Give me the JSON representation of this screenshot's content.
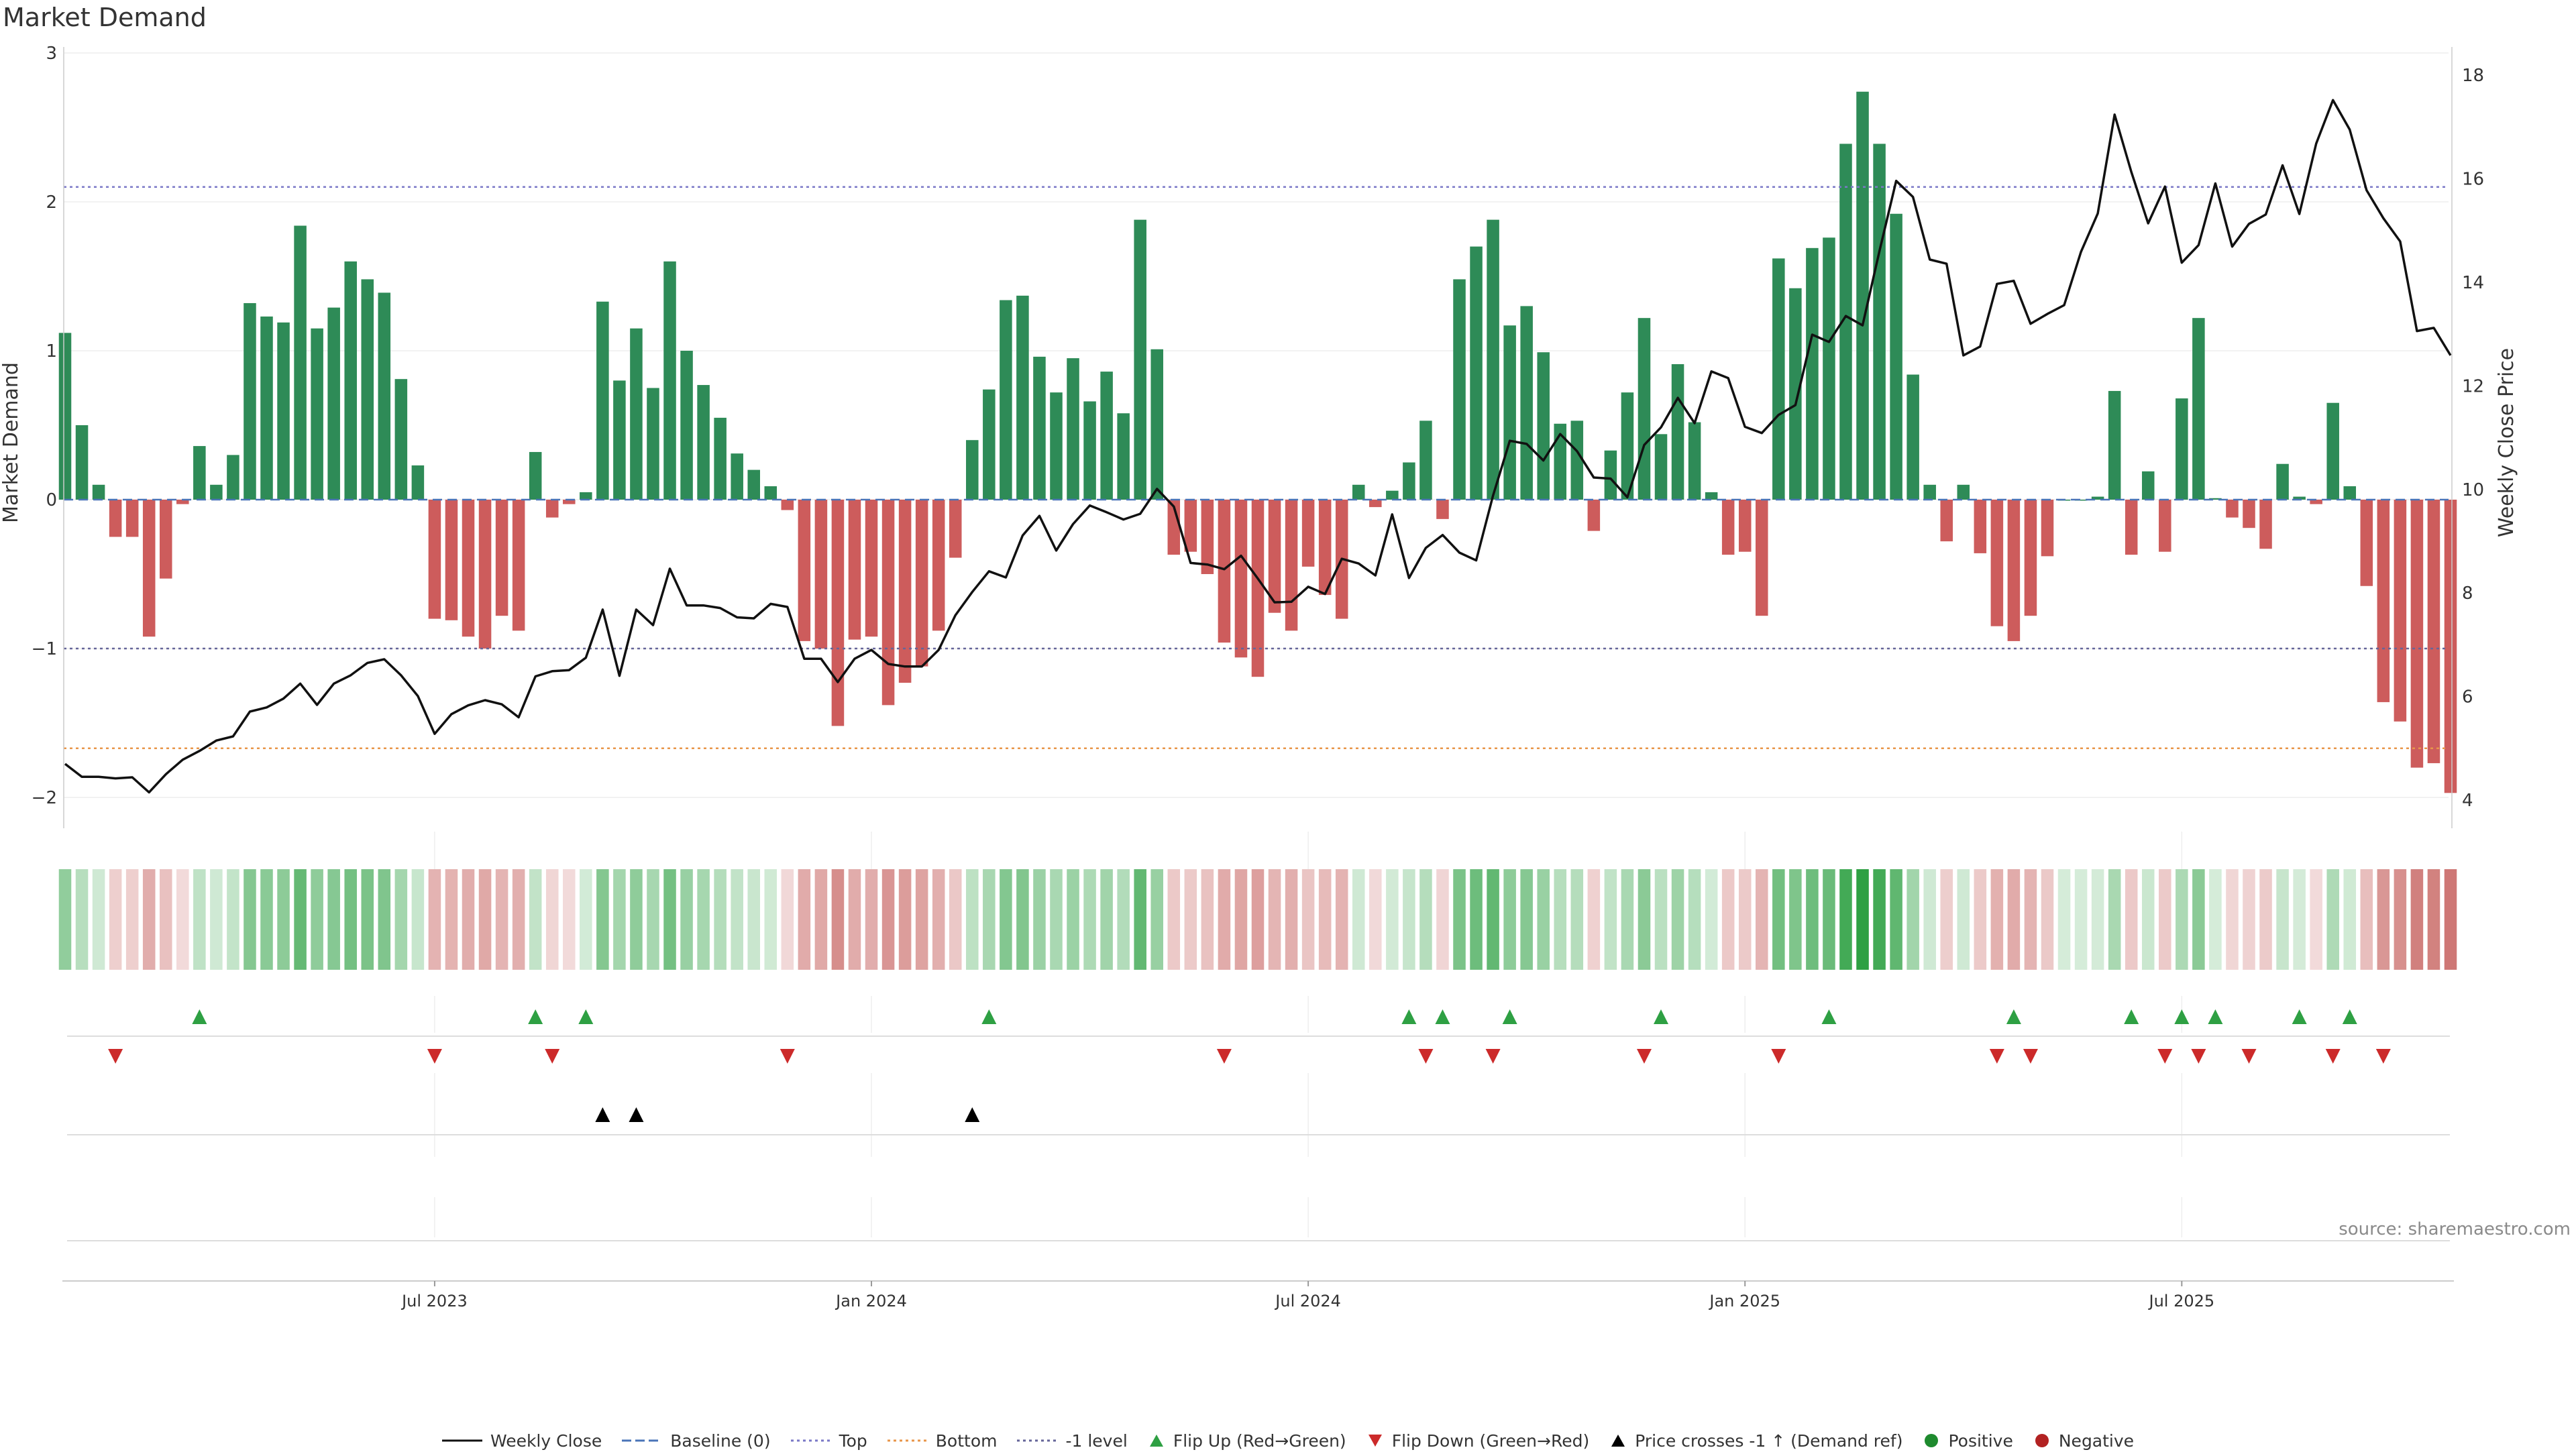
{
  "title": "Market Demand",
  "source": "source: sharemaestro.com",
  "colors": {
    "positive": "#2e8b57",
    "negative": "#cd5c5c",
    "price": "#111111",
    "top": "#7b79c7",
    "bottom": "#e8964a",
    "minus_one": "#666699",
    "baseline": "#4a74b8",
    "flip_up": "#2ea043",
    "flip_down": "#cc2a2a",
    "cross": "#000000",
    "dot_positive": "#1e8a2e",
    "dot_negative": "#b22222"
  },
  "legend": [
    {
      "key": "weekly-close",
      "label": "Weekly Close",
      "symbol": "solid-line",
      "color": "#111111"
    },
    {
      "key": "baseline",
      "label": "Baseline (0)",
      "symbol": "dashed-line",
      "color": "#4a74b8"
    },
    {
      "key": "top",
      "label": "Top",
      "symbol": "dotted-line",
      "color": "#7b79c7"
    },
    {
      "key": "bottom",
      "label": "Bottom",
      "symbol": "dotted-line",
      "color": "#e8964a"
    },
    {
      "key": "minus-one",
      "label": "-1 level",
      "symbol": "dotted-line",
      "color": "#666699"
    },
    {
      "key": "flip-up",
      "label": "Flip Up (Red→Green)",
      "symbol": "triangle-up",
      "color": "#2ea043"
    },
    {
      "key": "flip-down",
      "label": "Flip Down (Green→Red)",
      "symbol": "triangle-down",
      "color": "#cc2a2a"
    },
    {
      "key": "price-cross",
      "label": "Price crosses -1 ↑ (Demand ref)",
      "symbol": "triangle-up",
      "color": "#000000"
    },
    {
      "key": "positive",
      "label": "Positive",
      "symbol": "dot",
      "color": "#1e8a2e"
    },
    {
      "key": "negative",
      "label": "Negative",
      "symbol": "dot",
      "color": "#b22222"
    }
  ],
  "chart_data": {
    "type": "bar",
    "title": "Market Demand",
    "ylabel": "Market Demand",
    "y2label": "Weekly Close Price",
    "ylim": [
      -2.2,
      3.0
    ],
    "y_ticks": [
      3,
      2,
      1,
      0,
      -1,
      -2
    ],
    "y_tick_labels": [
      "3",
      "2",
      "1",
      "0",
      "−1",
      "−2"
    ],
    "y2lim": [
      3.8,
      18.5
    ],
    "y2_ticks": [
      18,
      16,
      14,
      12,
      10,
      8,
      6,
      4
    ],
    "y2_tick_labels": [
      "18",
      "16",
      "14",
      "12",
      "10",
      "8",
      "6",
      "4"
    ],
    "x_date_ticks": [
      22,
      48,
      74,
      100,
      126
    ],
    "x_date_labels": [
      "Jul 2023",
      "Jan 2024",
      "Jul 2024",
      "Jan 2025",
      "Jul 2025"
    ],
    "levels": {
      "top": 2.1,
      "bottom": -1.67,
      "minus_one": -1.0,
      "baseline": 0
    },
    "demand": [
      1.12,
      0.5,
      0.1,
      -0.25,
      -0.25,
      -0.92,
      -0.53,
      -0.03,
      0.36,
      0.1,
      0.3,
      1.32,
      1.23,
      1.19,
      1.84,
      1.15,
      1.29,
      1.6,
      1.48,
      1.39,
      0.81,
      0.23,
      -0.8,
      -0.81,
      -0.92,
      -1.0,
      -0.78,
      -0.88,
      0.32,
      -0.12,
      -0.03,
      0.05,
      1.33,
      0.8,
      1.15,
      0.75,
      1.6,
      1.0,
      0.77,
      0.55,
      0.31,
      0.2,
      0.09,
      -0.07,
      -0.95,
      -1.0,
      -1.52,
      -0.94,
      -0.92,
      -1.38,
      -1.23,
      -1.12,
      -0.88,
      -0.39,
      0.4,
      0.74,
      1.34,
      1.37,
      0.96,
      0.72,
      0.95,
      0.66,
      0.86,
      0.58,
      1.88,
      1.01,
      -0.37,
      -0.35,
      -0.5,
      -0.96,
      -1.06,
      -1.19,
      -0.76,
      -0.88,
      -0.45,
      -0.64,
      -0.8,
      0.1,
      -0.05,
      0.06,
      0.25,
      0.53,
      -0.13,
      1.48,
      1.7,
      1.88,
      1.17,
      1.3,
      0.99,
      0.51,
      0.53,
      -0.21,
      0.33,
      0.72,
      1.22,
      0.44,
      0.91,
      0.52,
      0.05,
      -0.37,
      -0.35,
      -0.78,
      1.62,
      1.42,
      1.69,
      1.76,
      2.39,
      2.74,
      2.39,
      1.92,
      0.84,
      0.1,
      -0.28,
      0.1,
      -0.36,
      -0.85,
      -0.95,
      -0.78,
      -0.38,
      0.0,
      0.0,
      0.02,
      0.73,
      -0.37,
      0.19,
      -0.35,
      0.68,
      1.22,
      0.01,
      -0.12,
      -0.19,
      -0.33,
      0.24,
      0.02,
      -0.03,
      0.65,
      0.09,
      -0.58,
      -1.36,
      -1.49,
      -1.8,
      -1.77,
      -1.97
    ],
    "weekly_close": [
      4.7,
      4.45,
      4.45,
      4.42,
      4.44,
      4.15,
      4.5,
      4.78,
      4.95,
      5.15,
      5.23,
      5.71,
      5.79,
      5.96,
      6.25,
      5.84,
      6.25,
      6.41,
      6.65,
      6.72,
      6.41,
      6.01,
      5.28,
      5.66,
      5.83,
      5.93,
      5.85,
      5.6,
      6.39,
      6.49,
      6.51,
      6.75,
      7.68,
      6.4,
      7.68,
      7.38,
      8.47,
      7.76,
      7.76,
      7.71,
      7.53,
      7.51,
      7.79,
      7.73,
      6.73,
      6.73,
      6.28,
      6.73,
      6.9,
      6.63,
      6.58,
      6.58,
      6.9,
      7.57,
      8.02,
      8.42,
      8.3,
      9.11,
      9.49,
      8.82,
      9.33,
      9.69,
      9.56,
      9.42,
      9.53,
      10.01,
      9.67,
      8.58,
      8.55,
      8.46,
      8.72,
      8.28,
      7.82,
      7.83,
      8.12,
      7.98,
      8.66,
      8.57,
      8.34,
      9.52,
      8.29,
      8.87,
      9.12,
      8.78,
      8.63,
      9.88,
      10.94,
      10.88,
      10.56,
      11.07,
      10.74,
      10.23,
      10.21,
      9.85,
      10.86,
      11.2,
      11.77,
      11.28,
      12.28,
      12.15,
      11.21,
      11.09,
      11.44,
      11.63,
      12.99,
      12.85,
      13.35,
      13.17,
      14.6,
      15.96,
      15.65,
      14.44,
      14.36,
      12.59,
      12.76,
      13.97,
      14.03,
      13.2,
      13.39,
      13.56,
      14.59,
      15.33,
      17.24,
      16.13,
      15.14,
      15.85,
      14.38,
      14.72,
      15.91,
      14.69,
      15.13,
      15.31,
      16.26,
      15.32,
      16.68,
      17.52,
      16.95,
      15.78,
      15.24,
      14.79,
      13.06,
      13.12,
      12.59
    ],
    "flip_up": [
      8,
      28,
      31,
      55,
      80,
      82,
      86,
      95,
      105,
      116,
      123,
      126,
      128,
      133,
      136
    ],
    "flip_down": [
      3,
      22,
      29,
      43,
      69,
      81,
      85,
      94,
      102,
      115,
      117,
      125,
      127,
      130,
      135,
      138
    ],
    "price_crosses": [
      32,
      34,
      54
    ]
  }
}
